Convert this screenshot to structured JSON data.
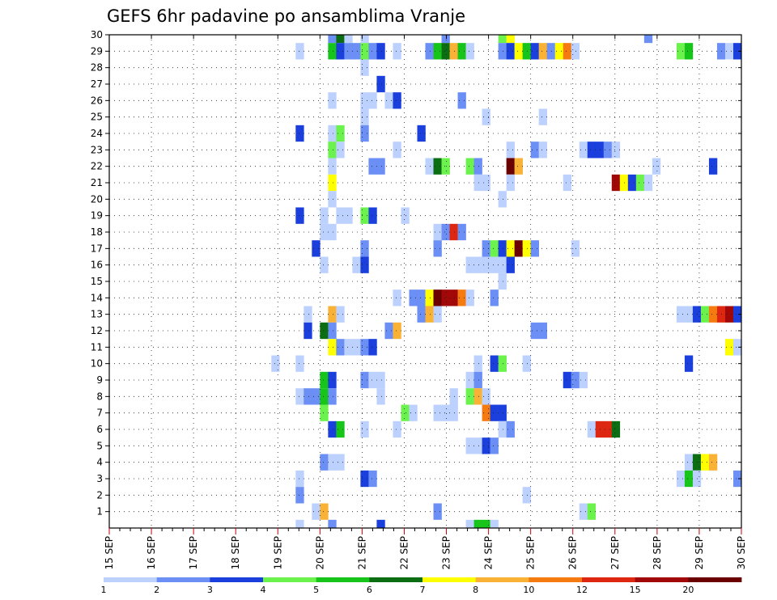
{
  "chart_data": {
    "type": "heatmap",
    "title": "GEFS 6hr padavine po ansamblima Vranje",
    "x_ticks": [
      "15 SEP",
      "16 SEP",
      "17 SEP",
      "18 SEP",
      "19 SEP",
      "20 SEP",
      "21 SEP",
      "22 SEP",
      "23 SEP",
      "24 SEP",
      "25 SEP",
      "26 SEP",
      "27 SEP",
      "28 SEP",
      "29 SEP",
      "30 SEP"
    ],
    "y_ticks": [
      "1",
      "2",
      "3",
      "4",
      "5",
      "6",
      "7",
      "8",
      "9",
      "10",
      "11",
      "12",
      "13",
      "14",
      "15",
      "16",
      "17",
      "18",
      "19",
      "20",
      "21",
      "22",
      "23",
      "24",
      "25",
      "26",
      "27",
      "28",
      "29",
      "30"
    ],
    "x_range": [
      "15 SEP",
      "30 SEP"
    ],
    "y_range": [
      0,
      30
    ],
    "time_step_hours": 6,
    "grid": true,
    "colorbar_labels": [
      "1",
      "2",
      "3",
      "4",
      "5",
      "6",
      "7",
      "8",
      "10",
      "12",
      "15",
      "20"
    ],
    "colorbar_colors": [
      "#bdd1ff",
      "#6b8ff5",
      "#1a3fdc",
      "#6cf24d",
      "#16c41a",
      "#0b6e12",
      "#ffff00",
      "#f9b235",
      "#f57a10",
      "#dd2710",
      "#a30808",
      "#6a0000"
    ],
    "cells": [
      {
        "member": 30,
        "x": 27,
        "level": 1
      },
      {
        "member": 30,
        "x": 28,
        "level": 5
      },
      {
        "member": 30,
        "x": 29,
        "level": 0
      },
      {
        "member": 30,
        "x": 31,
        "level": 0
      },
      {
        "member": 30,
        "x": 41,
        "level": 1
      },
      {
        "member": 30,
        "x": 48,
        "level": 3
      },
      {
        "member": 30,
        "x": 49,
        "level": 6
      },
      {
        "member": 30,
        "x": 66,
        "level": 1
      },
      {
        "member": 29,
        "x": 23,
        "level": 0
      },
      {
        "member": 29,
        "x": 27,
        "level": 4
      },
      {
        "member": 29,
        "x": 28,
        "level": 2
      },
      {
        "member": 29,
        "x": 29,
        "level": 1
      },
      {
        "member": 29,
        "x": 30,
        "level": 1
      },
      {
        "member": 29,
        "x": 31,
        "level": 3
      },
      {
        "member": 29,
        "x": 32,
        "level": 1
      },
      {
        "member": 29,
        "x": 33,
        "level": 2
      },
      {
        "member": 29,
        "x": 35,
        "level": 0
      },
      {
        "member": 29,
        "x": 39,
        "level": 1
      },
      {
        "member": 29,
        "x": 40,
        "level": 4
      },
      {
        "member": 29,
        "x": 41,
        "level": 5
      },
      {
        "member": 29,
        "x": 42,
        "level": 7
      },
      {
        "member": 29,
        "x": 43,
        "level": 4
      },
      {
        "member": 29,
        "x": 44,
        "level": 0
      },
      {
        "member": 29,
        "x": 48,
        "level": 1
      },
      {
        "member": 29,
        "x": 49,
        "level": 2
      },
      {
        "member": 29,
        "x": 50,
        "level": 6
      },
      {
        "member": 29,
        "x": 51,
        "level": 4
      },
      {
        "member": 29,
        "x": 52,
        "level": 2
      },
      {
        "member": 29,
        "x": 53,
        "level": 7
      },
      {
        "member": 29,
        "x": 54,
        "level": 1
      },
      {
        "member": 29,
        "x": 55,
        "level": 6
      },
      {
        "member": 29,
        "x": 56,
        "level": 8
      },
      {
        "member": 29,
        "x": 57,
        "level": 0
      },
      {
        "member": 29,
        "x": 70,
        "level": 3
      },
      {
        "member": 29,
        "x": 71,
        "level": 4
      },
      {
        "member": 29,
        "x": 75,
        "level": 1
      },
      {
        "member": 29,
        "x": 76,
        "level": 0
      },
      {
        "member": 29,
        "x": 77,
        "level": 2
      },
      {
        "member": 28,
        "x": 31,
        "level": 0
      },
      {
        "member": 27,
        "x": 33,
        "level": 2
      },
      {
        "member": 26,
        "x": 27,
        "level": 0
      },
      {
        "member": 26,
        "x": 31,
        "level": 0
      },
      {
        "member": 26,
        "x": 32,
        "level": 0
      },
      {
        "member": 26,
        "x": 34,
        "level": 0
      },
      {
        "member": 26,
        "x": 35,
        "level": 2
      },
      {
        "member": 26,
        "x": 43,
        "level": 1
      },
      {
        "member": 25,
        "x": 31,
        "level": 0
      },
      {
        "member": 25,
        "x": 46,
        "level": 0
      },
      {
        "member": 25,
        "x": 53,
        "level": 0
      },
      {
        "member": 24,
        "x": 23,
        "level": 2
      },
      {
        "member": 24,
        "x": 27,
        "level": 0
      },
      {
        "member": 24,
        "x": 28,
        "level": 3
      },
      {
        "member": 24,
        "x": 31,
        "level": 1
      },
      {
        "member": 24,
        "x": 38,
        "level": 2
      },
      {
        "member": 23,
        "x": 27,
        "level": 3
      },
      {
        "member": 23,
        "x": 28,
        "level": 0
      },
      {
        "member": 23,
        "x": 35,
        "level": 0
      },
      {
        "member": 23,
        "x": 49,
        "level": 0
      },
      {
        "member": 23,
        "x": 52,
        "level": 1
      },
      {
        "member": 23,
        "x": 53,
        "level": 0
      },
      {
        "member": 23,
        "x": 58,
        "level": 0
      },
      {
        "member": 23,
        "x": 59,
        "level": 2
      },
      {
        "member": 23,
        "x": 60,
        "level": 2
      },
      {
        "member": 23,
        "x": 61,
        "level": 1
      },
      {
        "member": 23,
        "x": 62,
        "level": 0
      },
      {
        "member": 22,
        "x": 27,
        "level": 0
      },
      {
        "member": 22,
        "x": 32,
        "level": 1
      },
      {
        "member": 22,
        "x": 33,
        "level": 1
      },
      {
        "member": 22,
        "x": 39,
        "level": 0
      },
      {
        "member": 22,
        "x": 40,
        "level": 5
      },
      {
        "member": 22,
        "x": 41,
        "level": 3
      },
      {
        "member": 22,
        "x": 44,
        "level": 3
      },
      {
        "member": 22,
        "x": 45,
        "level": 1
      },
      {
        "member": 22,
        "x": 49,
        "level": 11
      },
      {
        "member": 22,
        "x": 50,
        "level": 7
      },
      {
        "member": 22,
        "x": 67,
        "level": 0
      },
      {
        "member": 22,
        "x": 74,
        "level": 2
      },
      {
        "member": 21,
        "x": 27,
        "level": 6
      },
      {
        "member": 21,
        "x": 45,
        "level": 0
      },
      {
        "member": 21,
        "x": 46,
        "level": 0
      },
      {
        "member": 21,
        "x": 49,
        "level": 0
      },
      {
        "member": 21,
        "x": 56,
        "level": 0
      },
      {
        "member": 21,
        "x": 62,
        "level": 10
      },
      {
        "member": 21,
        "x": 63,
        "level": 6
      },
      {
        "member": 21,
        "x": 64,
        "level": 2
      },
      {
        "member": 21,
        "x": 65,
        "level": 3
      },
      {
        "member": 21,
        "x": 66,
        "level": 0
      },
      {
        "member": 20,
        "x": 27,
        "level": 0
      },
      {
        "member": 20,
        "x": 48,
        "level": 0
      },
      {
        "member": 19,
        "x": 23,
        "level": 2
      },
      {
        "member": 19,
        "x": 26,
        "level": 0
      },
      {
        "member": 19,
        "x": 28,
        "level": 0
      },
      {
        "member": 19,
        "x": 29,
        "level": 0
      },
      {
        "member": 19,
        "x": 31,
        "level": 3
      },
      {
        "member": 19,
        "x": 32,
        "level": 2
      },
      {
        "member": 19,
        "x": 36,
        "level": 0
      },
      {
        "member": 18,
        "x": 26,
        "level": 0
      },
      {
        "member": 18,
        "x": 27,
        "level": 0
      },
      {
        "member": 18,
        "x": 40,
        "level": 0
      },
      {
        "member": 18,
        "x": 41,
        "level": 1
      },
      {
        "member": 18,
        "x": 42,
        "level": 9
      },
      {
        "member": 18,
        "x": 43,
        "level": 1
      },
      {
        "member": 17,
        "x": 25,
        "level": 2
      },
      {
        "member": 17,
        "x": 31,
        "level": 1
      },
      {
        "member": 17,
        "x": 40,
        "level": 1
      },
      {
        "member": 17,
        "x": 46,
        "level": 1
      },
      {
        "member": 17,
        "x": 47,
        "level": 3
      },
      {
        "member": 17,
        "x": 48,
        "level": 2
      },
      {
        "member": 17,
        "x": 49,
        "level": 6
      },
      {
        "member": 17,
        "x": 50,
        "level": 11
      },
      {
        "member": 17,
        "x": 51,
        "level": 6
      },
      {
        "member": 17,
        "x": 52,
        "level": 1
      },
      {
        "member": 17,
        "x": 57,
        "level": 0
      },
      {
        "member": 16,
        "x": 26,
        "level": 0
      },
      {
        "member": 16,
        "x": 30,
        "level": 0
      },
      {
        "member": 16,
        "x": 31,
        "level": 2
      },
      {
        "member": 16,
        "x": 44,
        "level": 0
      },
      {
        "member": 16,
        "x": 45,
        "level": 0
      },
      {
        "member": 16,
        "x": 46,
        "level": 0
      },
      {
        "member": 16,
        "x": 47,
        "level": 0
      },
      {
        "member": 16,
        "x": 48,
        "level": 0
      },
      {
        "member": 16,
        "x": 49,
        "level": 2
      },
      {
        "member": 15,
        "x": 48,
        "level": 0
      },
      {
        "member": 14,
        "x": 35,
        "level": 0
      },
      {
        "member": 14,
        "x": 37,
        "level": 1
      },
      {
        "member": 14,
        "x": 38,
        "level": 1
      },
      {
        "member": 14,
        "x": 39,
        "level": 6
      },
      {
        "member": 14,
        "x": 40,
        "level": 11
      },
      {
        "member": 14,
        "x": 41,
        "level": 10
      },
      {
        "member": 14,
        "x": 42,
        "level": 10
      },
      {
        "member": 14,
        "x": 43,
        "level": 8
      },
      {
        "member": 14,
        "x": 44,
        "level": 0
      },
      {
        "member": 14,
        "x": 47,
        "level": 1
      },
      {
        "member": 13,
        "x": 24,
        "level": 0
      },
      {
        "member": 13,
        "x": 27,
        "level": 7
      },
      {
        "member": 13,
        "x": 28,
        "level": 0
      },
      {
        "member": 13,
        "x": 38,
        "level": 1
      },
      {
        "member": 13,
        "x": 39,
        "level": 7
      },
      {
        "member": 13,
        "x": 40,
        "level": 0
      },
      {
        "member": 13,
        "x": 70,
        "level": 0
      },
      {
        "member": 13,
        "x": 71,
        "level": 0
      },
      {
        "member": 13,
        "x": 72,
        "level": 2
      },
      {
        "member": 13,
        "x": 73,
        "level": 3
      },
      {
        "member": 13,
        "x": 74,
        "level": 8
      },
      {
        "member": 13,
        "x": 75,
        "level": 9
      },
      {
        "member": 13,
        "x": 76,
        "level": 10
      },
      {
        "member": 13,
        "x": 77,
        "level": 2
      },
      {
        "member": 12,
        "x": 24,
        "level": 2
      },
      {
        "member": 12,
        "x": 26,
        "level": 5
      },
      {
        "member": 12,
        "x": 27,
        "level": 1
      },
      {
        "member": 12,
        "x": 34,
        "level": 1
      },
      {
        "member": 12,
        "x": 35,
        "level": 7
      },
      {
        "member": 12,
        "x": 52,
        "level": 1
      },
      {
        "member": 12,
        "x": 53,
        "level": 1
      },
      {
        "member": 11,
        "x": 27,
        "level": 6
      },
      {
        "member": 11,
        "x": 28,
        "level": 1
      },
      {
        "member": 11,
        "x": 29,
        "level": 0
      },
      {
        "member": 11,
        "x": 30,
        "level": 0
      },
      {
        "member": 11,
        "x": 31,
        "level": 1
      },
      {
        "member": 11,
        "x": 32,
        "level": 2
      },
      {
        "member": 11,
        "x": 76,
        "level": 6
      },
      {
        "member": 11,
        "x": 77,
        "level": 0
      },
      {
        "member": 10,
        "x": 20,
        "level": 0
      },
      {
        "member": 10,
        "x": 23,
        "level": 0
      },
      {
        "member": 10,
        "x": 45,
        "level": 0
      },
      {
        "member": 10,
        "x": 47,
        "level": 2
      },
      {
        "member": 10,
        "x": 48,
        "level": 3
      },
      {
        "member": 10,
        "x": 51,
        "level": 0
      },
      {
        "member": 10,
        "x": 71,
        "level": 2
      },
      {
        "member": 9,
        "x": 26,
        "level": 4
      },
      {
        "member": 9,
        "x": 27,
        "level": 2
      },
      {
        "member": 9,
        "x": 31,
        "level": 1
      },
      {
        "member": 9,
        "x": 32,
        "level": 0
      },
      {
        "member": 9,
        "x": 33,
        "level": 0
      },
      {
        "member": 9,
        "x": 44,
        "level": 0
      },
      {
        "member": 9,
        "x": 45,
        "level": 1
      },
      {
        "member": 9,
        "x": 56,
        "level": 2
      },
      {
        "member": 9,
        "x": 57,
        "level": 1
      },
      {
        "member": 9,
        "x": 58,
        "level": 0
      },
      {
        "member": 8,
        "x": 23,
        "level": 0
      },
      {
        "member": 8,
        "x": 24,
        "level": 1
      },
      {
        "member": 8,
        "x": 25,
        "level": 1
      },
      {
        "member": 8,
        "x": 26,
        "level": 4
      },
      {
        "member": 8,
        "x": 27,
        "level": 1
      },
      {
        "member": 8,
        "x": 33,
        "level": 0
      },
      {
        "member": 8,
        "x": 42,
        "level": 0
      },
      {
        "member": 8,
        "x": 44,
        "level": 3
      },
      {
        "member": 8,
        "x": 45,
        "level": 7
      },
      {
        "member": 8,
        "x": 46,
        "level": 0
      },
      {
        "member": 7,
        "x": 26,
        "level": 3
      },
      {
        "member": 7,
        "x": 36,
        "level": 3
      },
      {
        "member": 7,
        "x": 37,
        "level": 0
      },
      {
        "member": 7,
        "x": 40,
        "level": 0
      },
      {
        "member": 7,
        "x": 41,
        "level": 0
      },
      {
        "member": 7,
        "x": 42,
        "level": 0
      },
      {
        "member": 7,
        "x": 46,
        "level": 8
      },
      {
        "member": 7,
        "x": 47,
        "level": 2
      },
      {
        "member": 7,
        "x": 48,
        "level": 2
      },
      {
        "member": 6,
        "x": 27,
        "level": 2
      },
      {
        "member": 6,
        "x": 28,
        "level": 4
      },
      {
        "member": 6,
        "x": 31,
        "level": 0
      },
      {
        "member": 6,
        "x": 35,
        "level": 0
      },
      {
        "member": 6,
        "x": 48,
        "level": 0
      },
      {
        "member": 6,
        "x": 49,
        "level": 1
      },
      {
        "member": 6,
        "x": 59,
        "level": 0
      },
      {
        "member": 6,
        "x": 60,
        "level": 9
      },
      {
        "member": 6,
        "x": 61,
        "level": 9
      },
      {
        "member": 6,
        "x": 62,
        "level": 5
      },
      {
        "member": 5,
        "x": 44,
        "level": 0
      },
      {
        "member": 5,
        "x": 45,
        "level": 0
      },
      {
        "member": 5,
        "x": 46,
        "level": 2
      },
      {
        "member": 5,
        "x": 47,
        "level": 1
      },
      {
        "member": 4,
        "x": 26,
        "level": 1
      },
      {
        "member": 4,
        "x": 27,
        "level": 0
      },
      {
        "member": 4,
        "x": 28,
        "level": 0
      },
      {
        "member": 4,
        "x": 71,
        "level": 0
      },
      {
        "member": 4,
        "x": 72,
        "level": 5
      },
      {
        "member": 4,
        "x": 73,
        "level": 6
      },
      {
        "member": 4,
        "x": 74,
        "level": 7
      },
      {
        "member": 3,
        "x": 23,
        "level": 0
      },
      {
        "member": 3,
        "x": 31,
        "level": 2
      },
      {
        "member": 3,
        "x": 32,
        "level": 1
      },
      {
        "member": 3,
        "x": 70,
        "level": 0
      },
      {
        "member": 3,
        "x": 71,
        "level": 4
      },
      {
        "member": 3,
        "x": 72,
        "level": 0
      },
      {
        "member": 3,
        "x": 77,
        "level": 1
      },
      {
        "member": 2,
        "x": 23,
        "level": 1
      },
      {
        "member": 2,
        "x": 51,
        "level": 0
      },
      {
        "member": 1,
        "x": 25,
        "level": 0
      },
      {
        "member": 1,
        "x": 26,
        "level": 7
      },
      {
        "member": 1,
        "x": 40,
        "level": 1
      },
      {
        "member": 1,
        "x": 58,
        "level": 0
      },
      {
        "member": 1,
        "x": 59,
        "level": 3
      },
      {
        "member": 0,
        "x": 23,
        "level": 0
      },
      {
        "member": 0,
        "x": 27,
        "level": 1
      },
      {
        "member": 0,
        "x": 33,
        "level": 2
      },
      {
        "member": 0,
        "x": 44,
        "level": 0
      },
      {
        "member": 0,
        "x": 45,
        "level": 4
      },
      {
        "member": 0,
        "x": 46,
        "level": 4
      },
      {
        "member": 0,
        "x": 47,
        "level": 0
      }
    ]
  }
}
